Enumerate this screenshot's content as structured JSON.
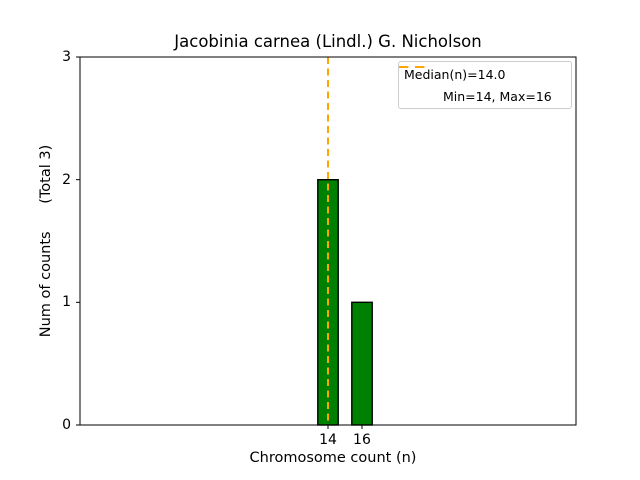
{
  "chart_data": {
    "type": "bar",
    "title": "Jacobinia carnea (Lindl.) G. Nicholson",
    "xlabel": "Chromosome count (n)",
    "ylabel": "Num of counts      (Total 3)",
    "categories": [
      14,
      16
    ],
    "values": [
      2,
      1
    ],
    "total_counts": 3,
    "bar_color": "#008000",
    "bar_edge_color": "#000000",
    "bar_width_units": 1.2,
    "xlim": [
      -0.6,
      28.6
    ],
    "ylim": [
      0,
      3
    ],
    "xticks": [
      14,
      16
    ],
    "xtick_labels": [
      "14",
      "16"
    ],
    "yticks": [
      0,
      1,
      2,
      3
    ],
    "ytick_labels": [
      "0",
      "1",
      "2",
      "3"
    ],
    "grid": false,
    "median_line": {
      "x": 14.0,
      "color": "#FFA500",
      "style": "dashed",
      "dash": [
        7,
        4.5
      ],
      "width": 2
    },
    "legend": {
      "position": "upper right",
      "entries": [
        {
          "label": "Median(n)=14.0",
          "marker": "orange-dashed-line"
        },
        {
          "label": "Min=14, Max=16",
          "marker": "none"
        }
      ]
    }
  }
}
